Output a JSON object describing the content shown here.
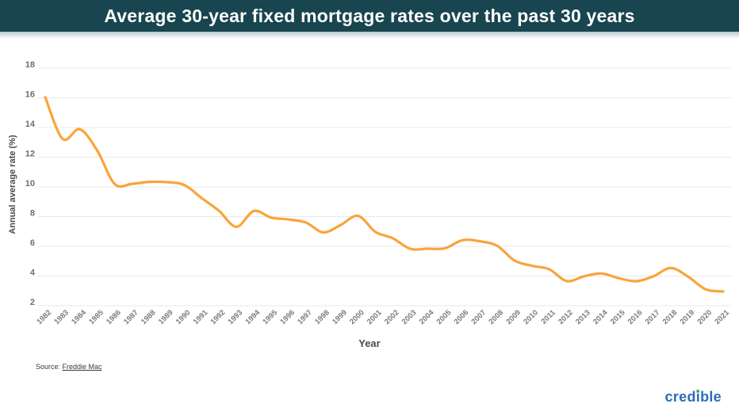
{
  "header": {
    "title": "Average 30-year fixed mortgage rates over the past 30 years"
  },
  "chart_data": {
    "type": "line",
    "title": "Average 30-year fixed mortgage rates over the past 30 years",
    "xlabel": "Year",
    "ylabel": "Annual average rate (%)",
    "ylim": [
      2,
      18
    ],
    "yticks": [
      2,
      4,
      6,
      8,
      10,
      12,
      14,
      16,
      18
    ],
    "grid": "horizontal",
    "legend": false,
    "line_color": "#F9A43B",
    "x": [
      1982,
      1983,
      1984,
      1985,
      1986,
      1987,
      1988,
      1989,
      1990,
      1991,
      1992,
      1993,
      1994,
      1995,
      1996,
      1997,
      1998,
      1999,
      2000,
      2001,
      2002,
      2003,
      2004,
      2005,
      2006,
      2007,
      2008,
      2009,
      2010,
      2011,
      2012,
      2013,
      2014,
      2015,
      2016,
      2017,
      2018,
      2019,
      2020,
      2021
    ],
    "values": [
      16.04,
      13.24,
      13.88,
      12.43,
      10.19,
      10.21,
      10.34,
      10.32,
      10.13,
      9.25,
      8.39,
      7.31,
      8.38,
      7.93,
      7.81,
      7.6,
      6.94,
      7.44,
      8.05,
      6.97,
      6.54,
      5.83,
      5.84,
      5.87,
      6.41,
      6.34,
      6.03,
      5.04,
      4.69,
      4.45,
      3.66,
      3.98,
      4.17,
      3.85,
      3.65,
      3.99,
      4.54,
      3.94,
      3.1,
      2.96
    ]
  },
  "source": {
    "prefix": "Source: ",
    "link_text": "Freddie Mac"
  },
  "footer": {
    "logo_text_before": "cred",
    "logo_text_i": "ı",
    "logo_text_after": "ble"
  },
  "colors": {
    "header_bg": "#18454F",
    "header_strip": "#B5C9CE",
    "line": "#F9A43B",
    "gridline": "#E8E8E8",
    "y_tick_text": "#6E6E6E",
    "x_tick_text": "#7C7C7C",
    "axis_title_text": "#4A4A4A",
    "logo_blue": "#2E6CB5",
    "logo_green": "#3FAE5F"
  }
}
